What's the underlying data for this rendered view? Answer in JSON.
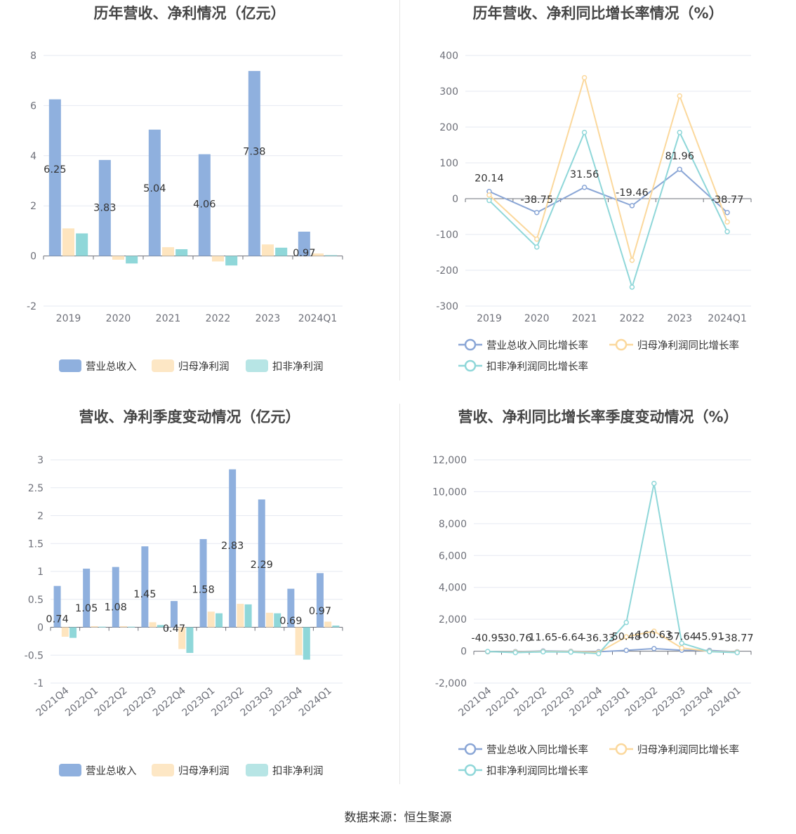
{
  "source_text": "数据来源：恒生聚源",
  "colors": {
    "revenue_bar": "#8fb0de",
    "parent_bar": "#fee5bf",
    "deducted_bar": "#8fd7d9",
    "revenue_line": "#8aa6d6",
    "parent_line": "#fbd89c",
    "deducted_line": "#8fd7d9",
    "revenue_legend": "#8fb0de",
    "parent_legend": "#fde7c5",
    "deducted_legend": "#b7e5e5"
  },
  "legend_labels": {
    "revenue": "营业总收入",
    "parent": "归母净利润",
    "deducted": "扣非净利润",
    "revenue_yoy": "营业总收入同比增长率",
    "parent_yoy": "归母净利润同比增长率",
    "deducted_yoy": "扣非净利润同比增长率"
  },
  "chart_data": [
    {
      "id": "annual_amount",
      "type": "bar",
      "title": "历年营收、净利情况（亿元）",
      "categories": [
        "2019",
        "2020",
        "2021",
        "2022",
        "2023",
        "2024Q1"
      ],
      "ylim": [
        -2,
        8
      ],
      "yticks": [
        -2,
        0,
        2,
        4,
        6,
        8
      ],
      "grid": true,
      "legend_position": "bottom",
      "series": [
        {
          "name": "营业总收入",
          "values": [
            6.25,
            3.83,
            5.04,
            4.06,
            7.38,
            0.97
          ],
          "labels": [
            "6.25",
            "3.83",
            "5.04",
            "4.06",
            "7.38",
            "0.97"
          ]
        },
        {
          "name": "归母净利润",
          "values": [
            1.1,
            -0.15,
            0.35,
            -0.22,
            0.46,
            0.1
          ]
        },
        {
          "name": "扣非净利润",
          "values": [
            0.9,
            -0.3,
            0.27,
            -0.38,
            0.33,
            0.03
          ]
        }
      ]
    },
    {
      "id": "annual_growth",
      "type": "line",
      "title": "历年营收、净利同比增长率情况（%）",
      "categories": [
        "2019",
        "2020",
        "2021",
        "2022",
        "2023",
        "2024Q1"
      ],
      "ylim": [
        -300,
        400
      ],
      "yticks": [
        -300,
        -200,
        -100,
        0,
        100,
        200,
        300,
        400
      ],
      "grid": true,
      "legend_position": "bottom",
      "series": [
        {
          "name": "营业总收入同比增长率",
          "values": [
            20.14,
            -38.75,
            31.56,
            -19.46,
            81.96,
            -38.77
          ],
          "labels": [
            "20.14",
            "-38.75",
            "31.56",
            "-19.46",
            "81.96",
            "-38.77"
          ]
        },
        {
          "name": "归母净利润同比增长率",
          "values": [
            10,
            -113,
            338,
            -172,
            287,
            -65
          ]
        },
        {
          "name": "扣非净利润同比增长率",
          "values": [
            -5,
            -135,
            185,
            -247,
            185,
            -92
          ]
        }
      ]
    },
    {
      "id": "quarterly_amount",
      "type": "bar",
      "title": "营收、净利季度变动情况（亿元）",
      "categories": [
        "2021Q4",
        "2022Q1",
        "2022Q2",
        "2022Q3",
        "2022Q4",
        "2023Q1",
        "2023Q2",
        "2023Q3",
        "2023Q4",
        "2024Q1"
      ],
      "ylim": [
        -1,
        3
      ],
      "yticks": [
        -1,
        -0.5,
        0,
        0.5,
        1,
        1.5,
        2,
        2.5,
        3
      ],
      "grid": true,
      "legend_position": "bottom",
      "series": [
        {
          "name": "营业总收入",
          "values": [
            0.74,
            1.05,
            1.08,
            1.45,
            0.47,
            1.58,
            2.83,
            2.29,
            0.69,
            0.97
          ],
          "labels": [
            "0.74",
            "1.05",
            "1.08",
            "1.45",
            "0.47",
            "1.58",
            "2.83",
            "2.29",
            "0.69",
            "0.97"
          ]
        },
        {
          "name": "归母净利润",
          "values": [
            -0.17,
            0.02,
            0.02,
            0.09,
            -0.39,
            0.28,
            0.42,
            0.26,
            -0.5,
            0.1
          ]
        },
        {
          "name": "扣非净利润",
          "values": [
            -0.19,
            0.01,
            0.01,
            0.04,
            -0.46,
            0.25,
            0.41,
            0.25,
            -0.58,
            0.03
          ]
        }
      ]
    },
    {
      "id": "quarterly_growth",
      "type": "line",
      "title": "营收、净利同比增长率季度变动情况（%）",
      "categories": [
        "2021Q4",
        "2022Q1",
        "2022Q2",
        "2022Q3",
        "2022Q4",
        "2023Q1",
        "2023Q2",
        "2023Q3",
        "2023Q4",
        "2024Q1"
      ],
      "ylim": [
        -2000,
        12000
      ],
      "yticks": [
        -2000,
        0,
        2000,
        4000,
        6000,
        8000,
        10000,
        12000
      ],
      "ytick_labels": [
        "-2,000",
        "0",
        "2,000",
        "4,000",
        "6,000",
        "8,000",
        "10,000",
        "12,000"
      ],
      "grid": true,
      "legend_position": "bottom",
      "series": [
        {
          "name": "营业总收入同比增长率",
          "values": [
            -40.95,
            -30.76,
            11.65,
            -6.64,
            -36.33,
            50.48,
            160.63,
            57.64,
            45.91,
            -38.77
          ],
          "labels": [
            "-40.95",
            "-30.76",
            "11.65",
            "-6.64",
            "-36.33",
            "50.48",
            "160.63",
            "57.64",
            "45.91",
            "-38.77"
          ]
        },
        {
          "name": "归母净利润同比增长率",
          "values": [
            -30,
            -60,
            -20,
            -30,
            -80,
            900,
            1250,
            200,
            -10,
            -60
          ]
        },
        {
          "name": "扣非净利润同比增长率",
          "values": [
            -20,
            -90,
            -40,
            -60,
            -150,
            1800,
            10520,
            500,
            -30,
            -90
          ]
        }
      ]
    }
  ]
}
